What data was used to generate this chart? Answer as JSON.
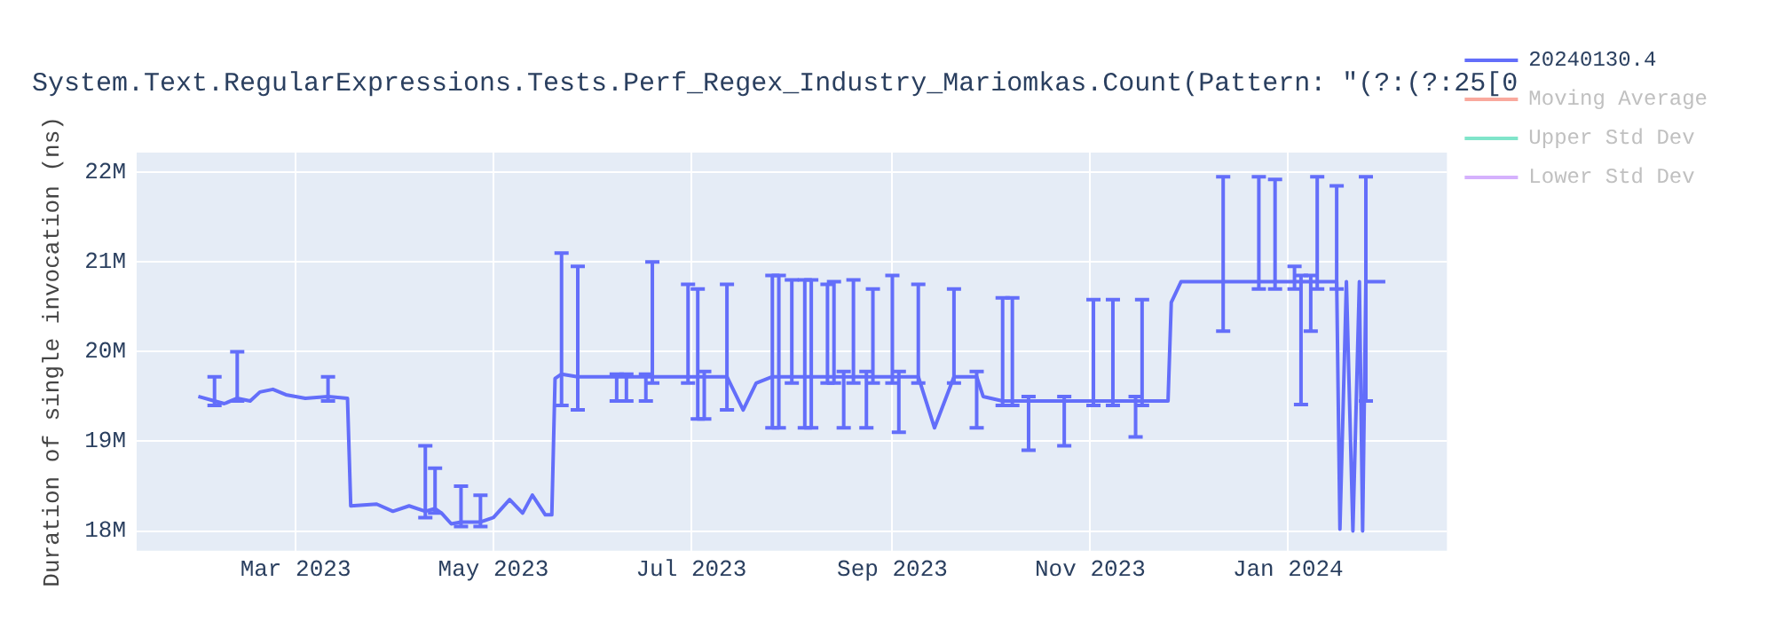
{
  "chart_data": {
    "type": "line",
    "title": "System.Text.RegularExpressions.Tests.Perf_Regex_Industry_Mariomkas.Count(Pattern: \"(?:(?:25[0",
    "ylabel": "Duration of single invocation (ns)",
    "x": [
      "2023-01-30",
      "2023-02-04",
      "2023-02-07",
      "2023-02-11",
      "2023-02-15",
      "2023-02-18",
      "2023-02-22",
      "2023-02-26",
      "2023-03-04",
      "2023-03-11",
      "2023-03-17",
      "2023-03-18",
      "2023-03-26",
      "2023-03-31",
      "2023-04-05",
      "2023-04-10",
      "2023-04-13",
      "2023-04-15",
      "2023-04-18",
      "2023-04-21",
      "2023-04-27",
      "2023-05-01",
      "2023-05-06",
      "2023-05-10",
      "2023-05-13",
      "2023-05-17",
      "2023-05-19",
      "2023-05-20",
      "2023-05-22",
      "2023-05-27",
      "2023-06-08",
      "2023-06-11",
      "2023-06-17",
      "2023-06-19",
      "2023-06-30",
      "2023-07-03",
      "2023-07-05",
      "2023-07-12",
      "2023-07-17",
      "2023-07-21",
      "2023-07-26",
      "2023-07-28",
      "2023-08-01",
      "2023-08-05",
      "2023-08-07",
      "2023-08-12",
      "2023-08-14",
      "2023-08-17",
      "2023-08-20",
      "2023-08-24",
      "2023-08-26",
      "2023-09-01",
      "2023-09-03",
      "2023-09-09",
      "2023-09-14",
      "2023-09-20",
      "2023-09-27",
      "2023-09-29",
      "2023-10-05",
      "2023-10-08",
      "2023-10-13",
      "2023-10-24",
      "2023-11-02",
      "2023-11-08",
      "2023-11-15",
      "2023-11-17",
      "2023-11-25",
      "2023-11-26",
      "2023-11-29",
      "2023-12-12",
      "2023-12-23",
      "2023-12-28",
      "2024-01-03",
      "2024-01-05",
      "2024-01-08",
      "2024-01-10",
      "2024-01-16",
      "2024-01-17",
      "2024-01-19",
      "2024-01-21",
      "2024-01-23",
      "2024-01-24",
      "2024-01-25",
      "2024-01-31"
    ],
    "series": [
      {
        "name": "20240130.4",
        "color": "#636efa",
        "values": [
          19500000,
          19450000,
          19420000,
          19480000,
          19450000,
          19550000,
          19580000,
          19520000,
          19480000,
          19500000,
          19480000,
          18280000,
          18300000,
          18220000,
          18280000,
          18220000,
          18250000,
          18200000,
          18080000,
          18100000,
          18100000,
          18150000,
          18350000,
          18200000,
          18400000,
          18180000,
          18180000,
          19700000,
          19750000,
          19720000,
          19720000,
          19720000,
          19720000,
          19720000,
          19720000,
          19720000,
          19720000,
          19720000,
          19350000,
          19650000,
          19720000,
          19720000,
          19720000,
          19720000,
          19720000,
          19720000,
          19720000,
          19720000,
          19720000,
          19720000,
          19720000,
          19720000,
          19720000,
          19720000,
          19150000,
          19720000,
          19720000,
          19500000,
          19450000,
          19450000,
          19450000,
          19450000,
          19450000,
          19450000,
          19450000,
          19450000,
          19450000,
          20550000,
          20780000,
          20780000,
          20780000,
          20780000,
          20780000,
          20780000,
          20780000,
          20780000,
          20780000,
          18020000,
          20780000,
          18000000,
          20780000,
          18000000,
          20780000,
          20780000
        ],
        "errors": [
          null,
          [
            19400000,
            19720000
          ],
          null,
          [
            19450000,
            20000000
          ],
          null,
          null,
          null,
          null,
          null,
          [
            19450000,
            19720000
          ],
          null,
          null,
          null,
          null,
          null,
          [
            18150000,
            18950000
          ],
          [
            18200000,
            18700000
          ],
          null,
          null,
          [
            18050000,
            18500000
          ],
          [
            18050000,
            18400000
          ],
          null,
          null,
          null,
          null,
          null,
          null,
          null,
          [
            19400000,
            21100000
          ],
          [
            19350000,
            20950000
          ],
          [
            19450000,
            19750000
          ],
          [
            19450000,
            19750000
          ],
          [
            19450000,
            19750000
          ],
          [
            19650000,
            21000000
          ],
          [
            19650000,
            20750000
          ],
          [
            19250000,
            20700000
          ],
          [
            19250000,
            19780000
          ],
          [
            19350000,
            20750000
          ],
          null,
          null,
          [
            19150000,
            20850000
          ],
          [
            19150000,
            20850000
          ],
          [
            19650000,
            20800000
          ],
          [
            19150000,
            20800000
          ],
          [
            19150000,
            20800000
          ],
          [
            19650000,
            20750000
          ],
          [
            19650000,
            20780000
          ],
          [
            19150000,
            19780000
          ],
          [
            19650000,
            20800000
          ],
          [
            19150000,
            19780000
          ],
          [
            19650000,
            20700000
          ],
          [
            19650000,
            20850000
          ],
          [
            19100000,
            19780000
          ],
          [
            19650000,
            20750000
          ],
          null,
          [
            19650000,
            20700000
          ],
          [
            19150000,
            19780000
          ],
          null,
          [
            19400000,
            20600000
          ],
          [
            19400000,
            20600000
          ],
          [
            18900000,
            19500000
          ],
          [
            18950000,
            19500000
          ],
          [
            19400000,
            20580000
          ],
          [
            19400000,
            20580000
          ],
          [
            19050000,
            19500000
          ],
          [
            19400000,
            20580000
          ],
          null,
          null,
          null,
          [
            20230000,
            21950000
          ],
          [
            20700000,
            21950000
          ],
          [
            20700000,
            21920000
          ],
          [
            20700000,
            20950000
          ],
          [
            19410000,
            20850000
          ],
          [
            20230000,
            20850000
          ],
          [
            20700000,
            21950000
          ],
          [
            20700000,
            21850000
          ],
          null,
          null,
          null,
          null,
          null,
          [
            19450000,
            21950000
          ],
          null
        ]
      },
      {
        "name": "Moving Average",
        "color": "#f9a99d",
        "values": [
          null,
          null,
          null,
          null,
          null,
          null,
          null,
          null,
          null,
          null,
          null,
          null,
          null,
          null,
          null,
          null,
          null,
          null,
          null,
          null,
          null,
          null,
          null,
          null,
          null,
          null,
          null,
          null,
          null,
          null,
          null,
          null,
          null,
          null,
          null,
          null,
          null,
          null,
          null,
          null,
          null,
          null,
          null,
          null,
          null,
          null,
          null,
          null,
          null,
          null,
          null,
          null,
          null,
          null,
          null,
          null,
          null,
          null,
          null,
          null,
          null,
          null,
          null,
          null,
          null,
          null,
          null,
          null,
          null,
          null,
          null,
          null,
          null,
          null,
          null,
          null,
          null,
          null,
          null,
          null,
          null,
          null,
          null,
          null
        ]
      },
      {
        "name": "Upper Std Dev",
        "color": "#80e5ca",
        "values": [
          null,
          null,
          null,
          null,
          null,
          null,
          null,
          null,
          null,
          null,
          null,
          null,
          null,
          null,
          null,
          null,
          null,
          null,
          null,
          null,
          null,
          null,
          null,
          null,
          null,
          null,
          null,
          null,
          null,
          null,
          null,
          null,
          null,
          null,
          null,
          null,
          null,
          null,
          null,
          null,
          null,
          null,
          null,
          null,
          null,
          null,
          null,
          null,
          null,
          null,
          null,
          null,
          null,
          null,
          null,
          null,
          null,
          null,
          null,
          null,
          null,
          null,
          null,
          null,
          null,
          null,
          null,
          null,
          null,
          null,
          null,
          null,
          null,
          null,
          null,
          null,
          null,
          null,
          null,
          null,
          null,
          null,
          null,
          null
        ]
      },
      {
        "name": "Lower Std Dev",
        "color": "#d5b1fd",
        "values": [
          null,
          null,
          null,
          null,
          null,
          null,
          null,
          null,
          null,
          null,
          null,
          null,
          null,
          null,
          null,
          null,
          null,
          null,
          null,
          null,
          null,
          null,
          null,
          null,
          null,
          null,
          null,
          null,
          null,
          null,
          null,
          null,
          null,
          null,
          null,
          null,
          null,
          null,
          null,
          null,
          null,
          null,
          null,
          null,
          null,
          null,
          null,
          null,
          null,
          null,
          null,
          null,
          null,
          null,
          null,
          null,
          null,
          null,
          null,
          null,
          null,
          null,
          null,
          null,
          null,
          null,
          null,
          null,
          null,
          null,
          null,
          null,
          null,
          null,
          null,
          null,
          null,
          null,
          null,
          null,
          null,
          null,
          null,
          null
        ]
      }
    ],
    "xlim": [
      "2023-01-11",
      "2024-02-19"
    ],
    "xticks": [
      {
        "value": "2023-03-01",
        "label": "Mar 2023"
      },
      {
        "value": "2023-05-01",
        "label": "May 2023"
      },
      {
        "value": "2023-07-01",
        "label": "Jul 2023"
      },
      {
        "value": "2023-09-01",
        "label": "Sep 2023"
      },
      {
        "value": "2023-11-01",
        "label": "Nov 2023"
      },
      {
        "value": "2024-01-01",
        "label": "Jan 2024"
      }
    ],
    "ylim": [
      17780000,
      22220000
    ],
    "yticks": [
      {
        "value": 18000000,
        "label": "18M"
      },
      {
        "value": 19000000,
        "label": "19M"
      },
      {
        "value": 20000000,
        "label": "20M"
      },
      {
        "value": 21000000,
        "label": "21M"
      },
      {
        "value": 22000000,
        "label": "22M"
      }
    ],
    "grid": true,
    "legend": "right"
  }
}
